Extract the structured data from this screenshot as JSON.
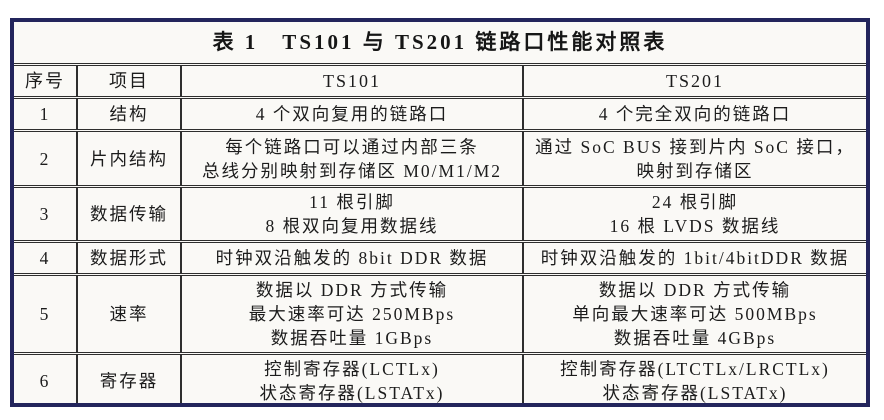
{
  "title": "表 1　TS101 与 TS201 链路口性能对照表",
  "table": {
    "headers": {
      "no": "序号",
      "item": "项目",
      "ts101": "TS101",
      "ts201": "TS201"
    },
    "rows": [
      {
        "no": "1",
        "item": "结构",
        "ts101": "4 个双向复用的链路口",
        "ts201": "4 个完全双向的链路口"
      },
      {
        "no": "2",
        "item": "片内结构",
        "ts101": "每个链路口可以通过内部三条\n总线分别映射到存储区 M0/M1/M2",
        "ts201": "通过 SoC BUS 接到片内 SoC 接口，\n映射到存储区"
      },
      {
        "no": "3",
        "item": "数据传输",
        "ts101": "11 根引脚\n8 根双向复用数据线",
        "ts201": "24 根引脚\n16 根 LVDS 数据线"
      },
      {
        "no": "4",
        "item": "数据形式",
        "ts101": "时钟双沿触发的 8bit DDR 数据",
        "ts201": "时钟双沿触发的 1bit/4bitDDR 数据"
      },
      {
        "no": "5",
        "item": "速率",
        "ts101": "数据以 DDR 方式传输\n最大速率可达 250MBps\n数据吞吐量 1GBps",
        "ts201": "数据以 DDR 方式传输\n单向最大速率可达 500MBps\n数据吞吐量 4GBps"
      },
      {
        "no": "6",
        "item": "寄存器",
        "ts101": "控制寄存器(LCTLx)\n状态寄存器(LSTATx)",
        "ts201": "控制寄存器(LTCTLx/LRCTLx)\n状态寄存器(LSTATx)"
      }
    ]
  },
  "colors": {
    "frame_border": "#23255c",
    "table_lines": "#2e2e2e",
    "text": "#1c1c1c",
    "paper": "#faf9f6"
  }
}
